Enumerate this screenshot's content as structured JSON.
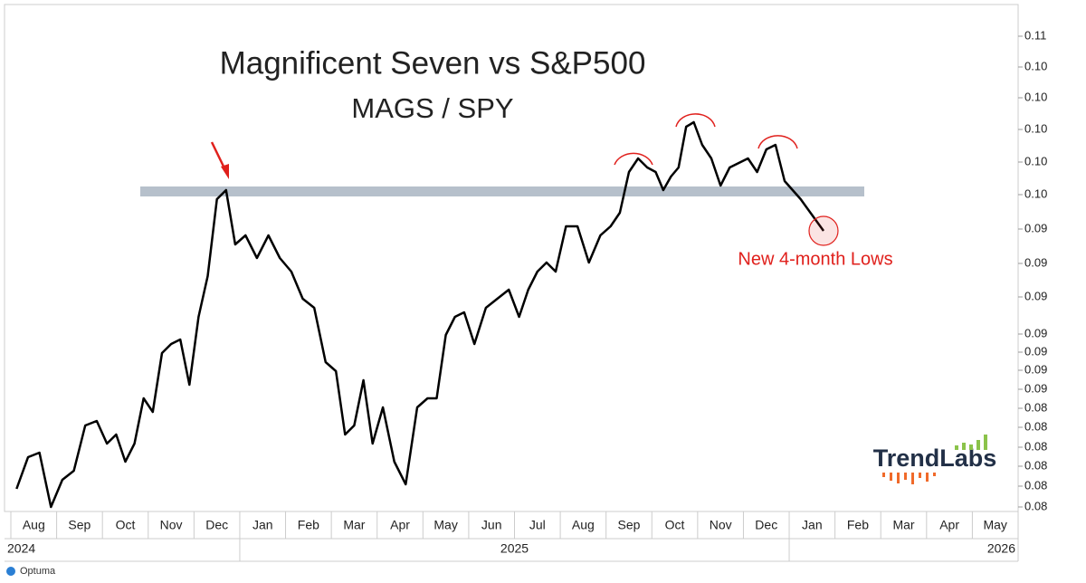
{
  "chart_data": {
    "type": "line",
    "title": "Magnificent Seven vs S&P500",
    "subtitle": "MAGS / SPY",
    "annotation": "New 4-month Lows",
    "logo": "TrendLabs",
    "footer": "Optuma",
    "categories": [
      "Aug",
      "Sep",
      "Oct",
      "Nov",
      "Dec",
      "Jan",
      "Feb",
      "Mar",
      "Apr",
      "May",
      "Jun",
      "Jul",
      "Aug",
      "Sep",
      "Oct",
      "Nov",
      "Dec",
      "Jan",
      "Feb",
      "Mar",
      "Apr",
      "May"
    ],
    "years": [
      "2024",
      "2025",
      "2026"
    ],
    "xlim": [
      "2024-08",
      "2026-05"
    ],
    "x": [
      "2024-08",
      "2024-08",
      "2024-08",
      "2024-08",
      "2024-09",
      "2024-09",
      "2024-09",
      "2024-09",
      "2024-10",
      "2024-10",
      "2024-10",
      "2024-10",
      "2024-10",
      "2024-11",
      "2024-11",
      "2024-11",
      "2024-11",
      "2024-11",
      "2024-12",
      "2024-12",
      "2024-12",
      "2024-12",
      "2024-12",
      "2025-01",
      "2025-01",
      "2025-01",
      "2025-01",
      "2025-02",
      "2025-02",
      "2025-02",
      "2025-02",
      "2025-03",
      "2025-03",
      "2025-03",
      "2025-03",
      "2025-03",
      "2025-04",
      "2025-04",
      "2025-04",
      "2025-04",
      "2025-05",
      "2025-05",
      "2025-05",
      "2025-05",
      "2025-05",
      "2025-06",
      "2025-06",
      "2025-06",
      "2025-06",
      "2025-07",
      "2025-07",
      "2025-07",
      "2025-07",
      "2025-07",
      "2025-08",
      "2025-08",
      "2025-08",
      "2025-08",
      "2025-09",
      "2025-09",
      "2025-09",
      "2025-09",
      "2025-09",
      "2025-10",
      "2025-10",
      "2025-10",
      "2025-10",
      "2025-10",
      "2025-10",
      "2025-11",
      "2025-11",
      "2025-11",
      "2025-11",
      "2025-11",
      "2025-12",
      "2025-12",
      "2025-12",
      "2025-12",
      "2025-12",
      "2026-01",
      "2026-01"
    ],
    "series": [
      {
        "name": "MAGS / SPY",
        "color": "#000000",
        "values": [
          0.0802,
          0.08195,
          0.0822,
          0.0792,
          0.0807,
          0.0812,
          0.0837,
          0.08395,
          0.0827,
          0.0832,
          0.0817,
          0.0827,
          0.0852,
          0.08445,
          0.0877,
          0.0882,
          0.08845,
          0.08595,
          0.0897,
          0.09195,
          0.0962,
          0.0967,
          0.0937,
          0.0942,
          0.09295,
          0.0942,
          0.09295,
          0.0922,
          0.0907,
          0.0902,
          0.0872,
          0.0867,
          0.0832,
          0.0837,
          0.0862,
          0.0827,
          0.0847,
          0.0817,
          0.08045,
          0.0847,
          0.0852,
          0.0852,
          0.0887,
          0.0897,
          0.08995,
          0.0882,
          0.0902,
          0.0907,
          0.0912,
          0.0897,
          0.0912,
          0.0922,
          0.0927,
          0.0922,
          0.0947,
          0.0947,
          0.0927,
          0.0942,
          0.0947,
          0.09545,
          0.0977,
          0.09845,
          0.09795,
          0.0977,
          0.0967,
          0.09745,
          0.09795,
          0.1002,
          0.10045,
          0.0992,
          0.09845,
          0.09695,
          0.09795,
          0.0982,
          0.09845,
          0.0977,
          0.09895,
          0.0992,
          0.0972,
          0.0962,
          0.09445
        ]
      }
    ],
    "resistance_level": 0.09665,
    "ylim": [
      0.07895,
      0.10695
    ],
    "yticks": [
      {
        "value": 0.1052,
        "label": "0.11"
      },
      {
        "value": 0.1035,
        "label": "0.10"
      },
      {
        "value": 0.1018,
        "label": "0.10"
      },
      {
        "value": 0.10005,
        "label": "0.10"
      },
      {
        "value": 0.09825,
        "label": "0.10"
      },
      {
        "value": 0.09645,
        "label": "0.10"
      },
      {
        "value": 0.09455,
        "label": "0.09"
      },
      {
        "value": 0.09265,
        "label": "0.09"
      },
      {
        "value": 0.0908,
        "label": "0.09"
      },
      {
        "value": 0.08875,
        "label": "0.09"
      },
      {
        "value": 0.08775,
        "label": "0.09"
      },
      {
        "value": 0.08675,
        "label": "0.09"
      },
      {
        "value": 0.0857,
        "label": "0.09"
      },
      {
        "value": 0.08465,
        "label": "0.08"
      },
      {
        "value": 0.0836,
        "label": "0.08"
      },
      {
        "value": 0.0825,
        "label": "0.08"
      },
      {
        "value": 0.08145,
        "label": "0.08"
      },
      {
        "value": 0.08035,
        "label": "0.08"
      },
      {
        "value": 0.0792,
        "label": "0.08"
      }
    ],
    "grid": false
  }
}
